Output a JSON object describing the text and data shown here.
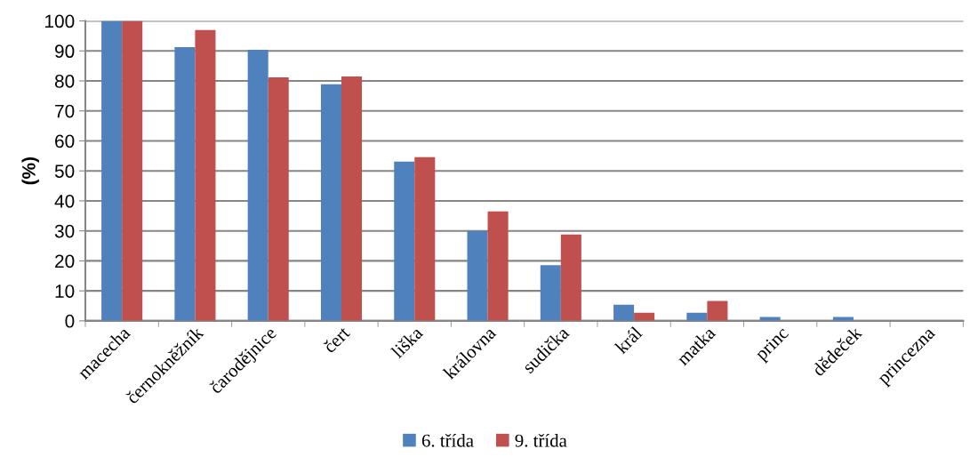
{
  "chart_data": {
    "type": "bar",
    "ylabel": "(%)",
    "categories": [
      "macecha",
      "černokněžník",
      "čarodějnice",
      "čert",
      "liška",
      "královna",
      "sudička",
      "král",
      "matka",
      "princ",
      "dědeček",
      "princezna"
    ],
    "series": [
      {
        "name": "6. třída",
        "color": "#4f81bd",
        "values": [
          100,
          91.3,
          90.4,
          78.9,
          53.1,
          30,
          18.6,
          5.4,
          2.7,
          1.3,
          1.3,
          0
        ]
      },
      {
        "name": "9. třída",
        "color": "#c0504d",
        "values": [
          100,
          97,
          81.2,
          81.5,
          54.6,
          36.5,
          28.8,
          2.7,
          6.6,
          0,
          0,
          0
        ]
      }
    ],
    "ylim": [
      0,
      100
    ],
    "yticks": [
      0,
      10,
      20,
      30,
      40,
      50,
      60,
      70,
      80,
      90,
      100
    ],
    "grid": "y",
    "legend": "bottom"
  }
}
